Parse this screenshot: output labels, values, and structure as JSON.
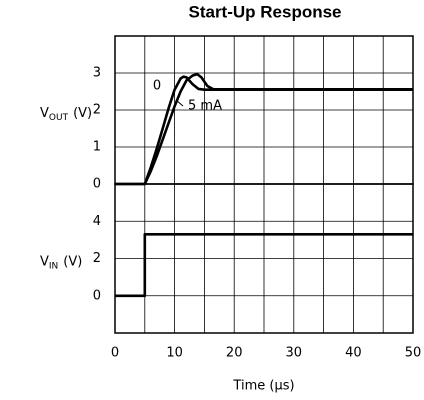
{
  "chart_data": [
    {
      "type": "line",
      "title": "Start-Up Response",
      "ylabel": {
        "main": "V",
        "sub": "OUT",
        "unit": "(V)"
      },
      "xlim": [
        0,
        50
      ],
      "xgrid": [
        5,
        10,
        15,
        20,
        25,
        30,
        35,
        40,
        45
      ],
      "ylim": [
        0,
        4
      ],
      "yticks": [
        0,
        1,
        2,
        3
      ],
      "grid": true,
      "series": [
        {
          "name": "0",
          "color": "#000000",
          "x": [
            0,
            5,
            6,
            7,
            8,
            9,
            10,
            11,
            11.5,
            12,
            13,
            14,
            15,
            50
          ],
          "values": [
            0,
            0,
            0.45,
            0.95,
            1.5,
            2.05,
            2.55,
            2.85,
            2.9,
            2.88,
            2.7,
            2.57,
            2.55,
            2.55
          ]
        },
        {
          "name": "5 mA",
          "color": "#000000",
          "x": [
            0,
            5,
            6,
            7,
            8,
            9,
            10,
            11,
            12,
            13,
            13.8,
            14.5,
            15.5,
            16.5,
            50
          ],
          "values": [
            0,
            0,
            0.35,
            0.75,
            1.2,
            1.65,
            2.1,
            2.5,
            2.8,
            2.93,
            2.97,
            2.88,
            2.65,
            2.56,
            2.56
          ]
        }
      ]
    },
    {
      "type": "line",
      "xlabel": "Time (μs)",
      "ylabel": {
        "main": "V",
        "sub": "IN",
        "unit": "(V)"
      },
      "xlim": [
        0,
        50
      ],
      "xticks": [
        0,
        10,
        20,
        30,
        40,
        50
      ],
      "xgrid": [
        5,
        10,
        15,
        20,
        25,
        30,
        35,
        40,
        45
      ],
      "ylim": [
        -2,
        6
      ],
      "yticks": [
        0,
        2,
        4
      ],
      "grid": true,
      "series": [
        {
          "name": "VIN",
          "color": "#000000",
          "x": [
            0,
            5,
            5,
            50
          ],
          "values": [
            0,
            0,
            3.3,
            3.3
          ]
        }
      ]
    }
  ]
}
